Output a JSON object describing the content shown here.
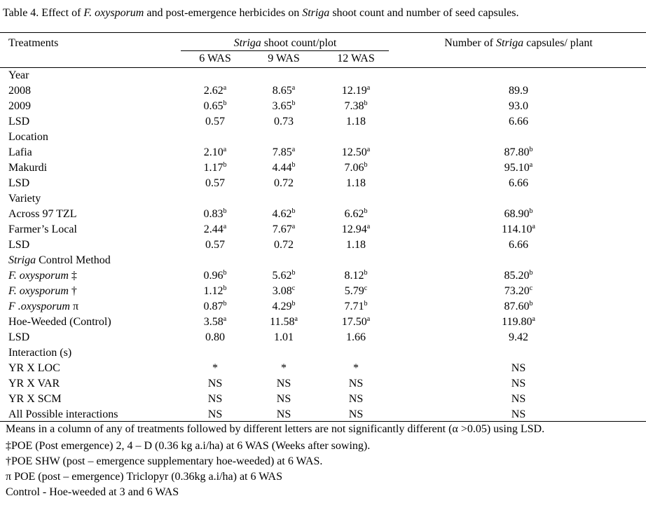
{
  "title": [
    "Table 4. Effect of ",
    "F. oxysporum",
    " and post-emergence herbicides on ",
    "Striga",
    "  shoot count and number of seed capsules."
  ],
  "header": {
    "treatments": "Treatments",
    "group": [
      "Striga",
      " shoot count/plot"
    ],
    "columns": [
      "6 WAS",
      "9 WAS",
      "12 WAS"
    ],
    "capsules": [
      "Number of ",
      "Striga",
      " capsules/ plant"
    ]
  },
  "rows": [
    {
      "label": "Year"
    },
    {
      "label": "2008",
      "cells": [
        [
          "2.62",
          "a"
        ],
        [
          "8.65",
          "a"
        ],
        [
          "12.19",
          "a"
        ],
        "89.9"
      ]
    },
    {
      "label": "2009",
      "cells": [
        [
          "0.65",
          "b"
        ],
        [
          "3.65",
          "b"
        ],
        [
          "7.38",
          "b"
        ],
        "93.0"
      ]
    },
    {
      "label": "LSD",
      "cells": [
        "0.57",
        "0.73",
        "1.18",
        "6.66"
      ]
    },
    {
      "label": "Location"
    },
    {
      "label": "Lafia",
      "cells": [
        [
          "2.10",
          "a"
        ],
        [
          "7.85",
          "a"
        ],
        [
          "12.50",
          "a"
        ],
        [
          "87.80",
          "b"
        ]
      ]
    },
    {
      "label": "Makurdi",
      "cells": [
        [
          "1.17",
          "b"
        ],
        [
          "4.44",
          "b"
        ],
        [
          "7.06",
          "b"
        ],
        [
          "95.10",
          "a"
        ]
      ]
    },
    {
      "label": "LSD",
      "cells": [
        "0.57",
        "0.72",
        "1.18",
        "6.66"
      ]
    },
    {
      "label": "Variety"
    },
    {
      "label": "Across 97 TZL",
      "cells": [
        [
          "0.83",
          "b"
        ],
        [
          "4.62",
          "b"
        ],
        [
          "6.62",
          "b"
        ],
        [
          "68.90",
          "b"
        ]
      ]
    },
    {
      "label": "Farmer’s Local",
      "cells": [
        [
          "2.44",
          "a"
        ],
        [
          "7.67",
          "a"
        ],
        [
          "12.94",
          "a"
        ],
        [
          "114.10",
          "a"
        ]
      ]
    },
    {
      "label": "LSD",
      "cells": [
        "0.57",
        "0.72",
        "1.18",
        "6.66"
      ]
    },
    {
      "label": [
        "Striga",
        " Control Method"
      ]
    },
    {
      "label": [
        "F. oxysporum",
        " ‡"
      ],
      "cells": [
        [
          "0.96",
          "b"
        ],
        [
          "5.62",
          "b"
        ],
        [
          "8.12",
          "b"
        ],
        [
          "85.20",
          "b"
        ]
      ]
    },
    {
      "label": [
        "F. oxysporum",
        " †"
      ],
      "cells": [
        [
          "1.12",
          "b"
        ],
        [
          "3.08",
          "c"
        ],
        [
          "5.79",
          "c"
        ],
        [
          "73.20",
          "c"
        ]
      ]
    },
    {
      "label": [
        "F .oxysporum",
        " π"
      ],
      "cells": [
        [
          "0.87",
          "b"
        ],
        [
          "4.29",
          "b"
        ],
        [
          "7.71",
          "b"
        ],
        [
          "87.60",
          "b"
        ]
      ]
    },
    {
      "label": "Hoe-Weeded (Control)",
      "cells": [
        [
          "3.58",
          "a"
        ],
        [
          "11.58",
          "a"
        ],
        [
          "17.50",
          "a"
        ],
        [
          "119.80",
          "a"
        ]
      ]
    },
    {
      "label": "LSD",
      "cells": [
        "0.80",
        "1.01",
        "1.66",
        "9.42"
      ]
    },
    {
      "label": "Interaction (s)"
    },
    {
      "label": "YR X LOC",
      "cells": [
        "*",
        "*",
        "*",
        "NS"
      ]
    },
    {
      "label": "YR X VAR",
      "cells": [
        "NS",
        "NS",
        "NS",
        "NS"
      ]
    },
    {
      "label": "YR X SCM",
      "cells": [
        "NS",
        "NS",
        "NS",
        "NS"
      ]
    },
    {
      "label": "All Possible interactions",
      "cells": [
        "NS",
        "NS",
        "NS",
        "NS"
      ]
    }
  ],
  "notes": [
    "Means in a column of any of treatments followed by different letters are not significantly different (α >0.05) using LSD.",
    "‡POE (Post emergence) 2, 4 – D (0.36 kg a.i/ha) at 6 WAS (Weeks after sowing).",
    "†POE SHW (post – emergence supplementary hoe-weeded) at 6 WAS.",
    "π POE (post – emergence) Triclopyr (0.36kg a.i/ha) at 6 WAS",
    "Control - Hoe-weeded at 3 and 6 WAS"
  ]
}
